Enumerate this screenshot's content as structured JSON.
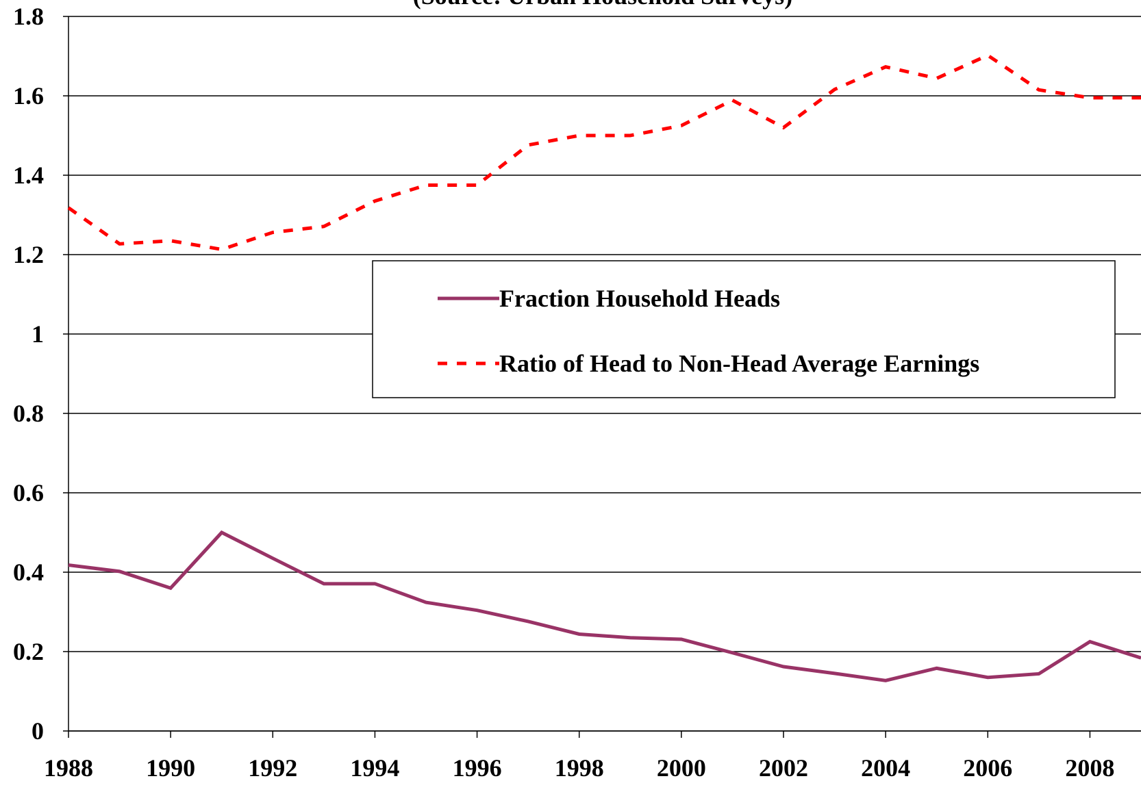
{
  "chart_data": {
    "type": "line",
    "subtitle": "(Source: Urban Household Surveys)",
    "x": [
      1988,
      1989,
      1990,
      1991,
      1992,
      1993,
      1994,
      1995,
      1996,
      1997,
      1998,
      1999,
      2000,
      2001,
      2002,
      2003,
      2004,
      2005,
      2006,
      2007,
      2008,
      2009
    ],
    "series": [
      {
        "name": "Fraction Household Heads",
        "color": "#993366",
        "dash": "solid",
        "values": [
          0.418,
          0.402,
          0.36,
          0.5,
          0.435,
          0.371,
          0.371,
          0.324,
          0.304,
          0.276,
          0.244,
          0.235,
          0.231,
          0.197,
          0.162,
          0.145,
          0.127,
          0.158,
          0.135,
          0.144,
          0.225,
          0.184
        ]
      },
      {
        "name": "Ratio of Head to Non-Head Average Earnings",
        "color": "#ff0000",
        "dash": "dashed",
        "values": [
          1.318,
          1.227,
          1.235,
          1.213,
          1.256,
          1.271,
          1.335,
          1.375,
          1.375,
          1.476,
          1.5,
          1.5,
          1.525,
          1.589,
          1.52,
          1.616,
          1.673,
          1.644,
          1.702,
          1.615,
          1.595,
          1.595
        ]
      }
    ],
    "xlim": [
      1988,
      2009
    ],
    "xticks": [
      1988,
      1990,
      1992,
      1994,
      1996,
      1998,
      2000,
      2002,
      2004,
      2006,
      2008
    ],
    "ylim": [
      0,
      1.8
    ],
    "yticks": [
      0,
      0.2,
      0.4,
      0.6,
      0.8,
      1,
      1.2,
      1.4,
      1.6,
      1.8
    ],
    "grid": true,
    "legend_position": "center right"
  }
}
